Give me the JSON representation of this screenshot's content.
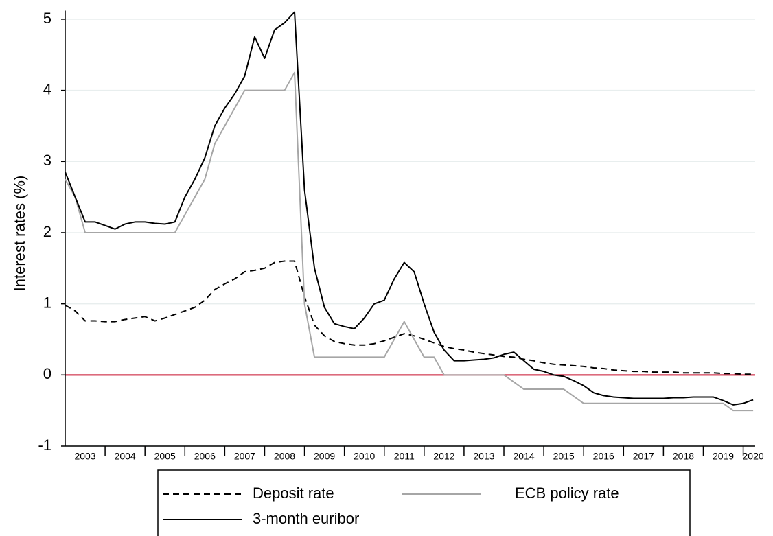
{
  "chart_data": {
    "type": "line",
    "y_label": "Interest rates (%)",
    "x": [
      2003,
      2003.25,
      2003.5,
      2003.75,
      2004,
      2004.25,
      2004.5,
      2004.75,
      2005,
      2005.25,
      2005.5,
      2005.75,
      2006,
      2006.25,
      2006.5,
      2006.75,
      2007,
      2007.25,
      2007.5,
      2007.75,
      2008,
      2008.25,
      2008.5,
      2008.75,
      2009,
      2009.25,
      2009.5,
      2009.75,
      2010,
      2010.25,
      2010.5,
      2010.75,
      2011,
      2011.25,
      2011.5,
      2011.75,
      2012,
      2012.25,
      2012.5,
      2012.75,
      2013,
      2013.25,
      2013.5,
      2013.75,
      2014,
      2014.25,
      2014.5,
      2014.75,
      2015,
      2015.25,
      2015.5,
      2015.75,
      2016,
      2016.25,
      2016.5,
      2016.75,
      2017,
      2017.25,
      2017.5,
      2017.75,
      2018,
      2018.25,
      2018.5,
      2018.75,
      2019,
      2019.25,
      2019.5,
      2019.75,
      2020,
      2020.25
    ],
    "series": [
      {
        "name": "Deposit rate",
        "color": "#000000",
        "dash": true,
        "values": [
          0.98,
          0.9,
          0.76,
          0.76,
          0.75,
          0.75,
          0.78,
          0.8,
          0.82,
          0.76,
          0.8,
          0.85,
          0.9,
          0.95,
          1.05,
          1.2,
          1.28,
          1.35,
          1.45,
          1.47,
          1.5,
          1.58,
          1.6,
          1.6,
          1.1,
          0.7,
          0.55,
          0.47,
          0.44,
          0.42,
          0.42,
          0.44,
          0.48,
          0.53,
          0.58,
          0.55,
          0.5,
          0.45,
          0.4,
          0.37,
          0.35,
          0.32,
          0.3,
          0.28,
          0.26,
          0.25,
          0.22,
          0.2,
          0.17,
          0.15,
          0.14,
          0.13,
          0.12,
          0.1,
          0.09,
          0.07,
          0.06,
          0.05,
          0.05,
          0.04,
          0.04,
          0.04,
          0.03,
          0.03,
          0.03,
          0.03,
          0.02,
          0.02,
          0.01,
          0.01
        ]
      },
      {
        "name": "ECB policy rate",
        "color": "#a6a6a6",
        "dash": false,
        "values": [
          2.75,
          2.5,
          2,
          2,
          2,
          2,
          2,
          2,
          2,
          2,
          2,
          2,
          2.25,
          2.5,
          2.75,
          3.25,
          3.5,
          3.75,
          4,
          4,
          4,
          4,
          4,
          4.25,
          1,
          0.25,
          0.25,
          0.25,
          0.25,
          0.25,
          0.25,
          0.25,
          0.25,
          0.5,
          0.75,
          0.5,
          0.25,
          0.25,
          0,
          0,
          0,
          0,
          0,
          0,
          0,
          -0.1,
          -0.2,
          -0.2,
          -0.2,
          -0.2,
          -0.2,
          -0.3,
          -0.4,
          -0.4,
          -0.4,
          -0.4,
          -0.4,
          -0.4,
          -0.4,
          -0.4,
          -0.4,
          -0.4,
          -0.4,
          -0.4,
          -0.4,
          -0.4,
          -0.4,
          -0.5,
          -0.5,
          -0.5
        ]
      },
      {
        "name": "3-month euribor",
        "color": "#000000",
        "dash": false,
        "values": [
          2.85,
          2.5,
          2.15,
          2.15,
          2.1,
          2.05,
          2.12,
          2.15,
          2.15,
          2.13,
          2.12,
          2.15,
          2.5,
          2.75,
          3.05,
          3.5,
          3.75,
          3.95,
          4.2,
          4.75,
          4.45,
          4.85,
          4.95,
          5.1,
          2.6,
          1.5,
          0.95,
          0.72,
          0.68,
          0.65,
          0.8,
          1,
          1.05,
          1.35,
          1.58,
          1.45,
          1,
          0.6,
          0.35,
          0.2,
          0.2,
          0.21,
          0.22,
          0.24,
          0.29,
          0.32,
          0.2,
          0.08,
          0.05,
          0,
          -0.02,
          -0.08,
          -0.15,
          -0.25,
          -0.29,
          -0.31,
          -0.32,
          -0.33,
          -0.33,
          -0.33,
          -0.33,
          -0.32,
          -0.32,
          -0.31,
          -0.31,
          -0.31,
          -0.36,
          -0.42,
          -0.4,
          -0.35
        ]
      }
    ],
    "xlim": [
      2003,
      2020.3
    ],
    "xticks": [
      {
        "value": 2003.5,
        "label": "2003"
      },
      {
        "value": 2004.5,
        "label": "2004"
      },
      {
        "value": 2005.5,
        "label": "2005"
      },
      {
        "value": 2006.5,
        "label": "2006"
      },
      {
        "value": 2007.5,
        "label": "2007"
      },
      {
        "value": 2008.5,
        "label": "2008"
      },
      {
        "value": 2009.5,
        "label": "2009"
      },
      {
        "value": 2010.5,
        "label": "2010"
      },
      {
        "value": 2011.5,
        "label": "2011"
      },
      {
        "value": 2012.5,
        "label": "2012"
      },
      {
        "value": 2013.5,
        "label": "2013"
      },
      {
        "value": 2014.5,
        "label": "2014"
      },
      {
        "value": 2015.5,
        "label": "2015"
      },
      {
        "value": 2016.5,
        "label": "2016"
      },
      {
        "value": 2017.5,
        "label": "2017"
      },
      {
        "value": 2018.5,
        "label": "2018"
      },
      {
        "value": 2019.5,
        "label": "2019"
      },
      {
        "value": 2020.25,
        "label": "2020"
      }
    ],
    "x_separators": [
      2004,
      2005,
      2006,
      2007,
      2008,
      2009,
      2010,
      2011,
      2012,
      2013,
      2014,
      2015,
      2016,
      2017,
      2018,
      2019,
      2020
    ],
    "ylim": [
      -1,
      5.12
    ],
    "yticks": [
      -1,
      0,
      1,
      2,
      3,
      4,
      5
    ],
    "grid": true,
    "hline": 0,
    "hline_color": "#c8102e",
    "legend": "bottom"
  }
}
